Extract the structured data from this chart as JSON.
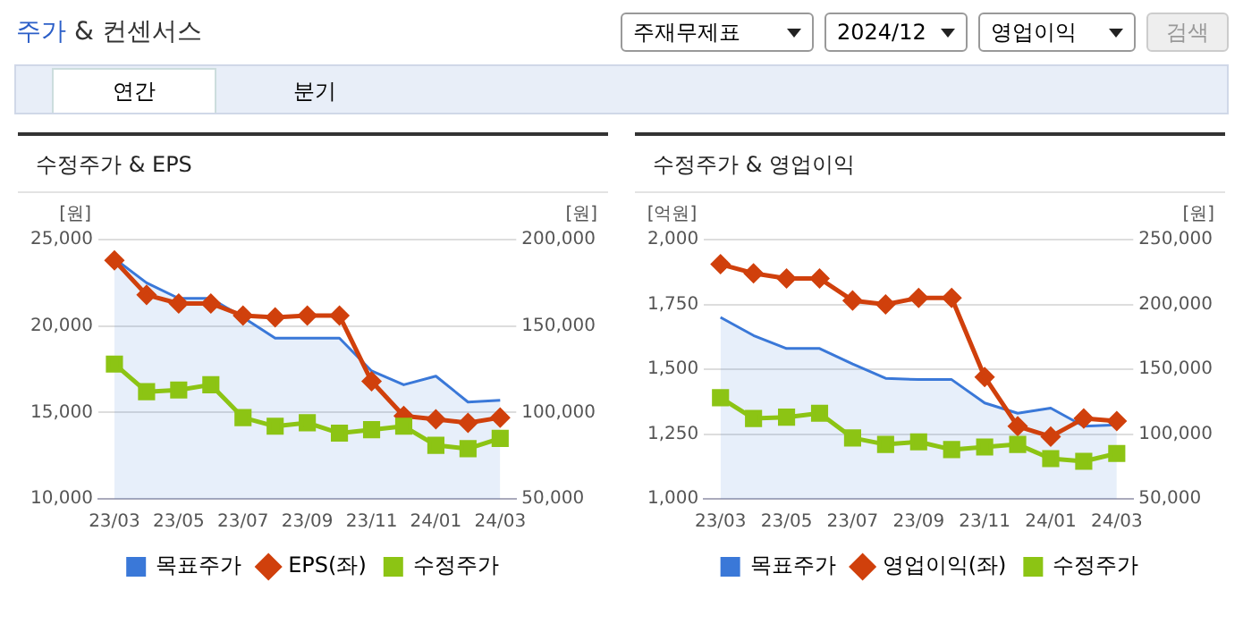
{
  "chart_data": [
    {
      "type": "line",
      "title": "수정주가 & EPS",
      "ylabel": "[원]",
      "y2label": "[원]",
      "annotations": [
        "주가 & 컨센서스",
        "주재무제표",
        "2024/12",
        "영업이익",
        "검색",
        "연간",
        "분기"
      ],
      "categories": [
        "23/03",
        null,
        "23/05",
        null,
        "23/07",
        null,
        "23/09",
        null,
        "23/11",
        null,
        "24/01",
        null,
        "24/03"
      ],
      "series": [
        {
          "name": "목표주가",
          "type": "area",
          "color": "#3a78d8",
          "axis": "y2",
          "marker": "none",
          "values": [
            189000,
            175000,
            166000,
            166000,
            155000,
            143000,
            143000,
            143000,
            124000,
            116000,
            121000,
            106000,
            107000
          ]
        },
        {
          "name": "EPS(좌)",
          "color": "#d0400c",
          "axis": "y",
          "marker": "diamond",
          "values": [
            23800,
            21800,
            21300,
            21300,
            20600,
            20500,
            20600,
            20600,
            16800,
            14800,
            14600,
            14400,
            14700
          ]
        },
        {
          "name": "수정주가",
          "color": "#8cc414",
          "axis": "y2",
          "marker": "square",
          "values": [
            128000,
            112000,
            113000,
            116000,
            97000,
            92000,
            94000,
            88000,
            90000,
            92000,
            81000,
            79000,
            85000
          ]
        }
      ],
      "ylim": [
        10000,
        25000
      ],
      "yticks": [
        {
          "value": 10000,
          "label": "10,000"
        },
        {
          "value": 15000,
          "label": "15,000"
        },
        {
          "value": 20000,
          "label": "20,000"
        },
        {
          "value": 25000,
          "label": "25,000"
        }
      ],
      "y2lim": [
        50000,
        200000
      ],
      "y2ticks": [
        {
          "value": 50000,
          "label": "50,000"
        },
        {
          "value": 100000,
          "label": "100,000"
        },
        {
          "value": 150000,
          "label": "150,000"
        },
        {
          "value": 200000,
          "label": "200,000"
        }
      ],
      "grid": "y",
      "legend": "bottom"
    },
    {
      "type": "line",
      "title": "수정주가 & 영업이익",
      "ylabel": "[억원]",
      "y2label": "[원]",
      "categories": [
        "23/03",
        null,
        "23/05",
        null,
        "23/07",
        null,
        "23/09",
        null,
        "23/11",
        null,
        "24/01",
        null,
        "24/03"
      ],
      "series": [
        {
          "name": "목표주가",
          "type": "area",
          "color": "#3a78d8",
          "axis": "y2",
          "marker": "none",
          "values": [
            190000,
            176000,
            166000,
            166000,
            154000,
            143000,
            142000,
            142000,
            124000,
            116000,
            120000,
            106000,
            107000
          ]
        },
        {
          "name": "영업이익(좌)",
          "color": "#d0400c",
          "axis": "y",
          "marker": "diamond",
          "values": [
            1905,
            1870,
            1850,
            1850,
            1765,
            1750,
            1775,
            1775,
            1470,
            1280,
            1240,
            1310,
            1300
          ]
        },
        {
          "name": "수정주가",
          "color": "#8cc414",
          "axis": "y2",
          "marker": "square",
          "values": [
            128000,
            112000,
            113000,
            116000,
            97000,
            92000,
            94000,
            88000,
            90000,
            92000,
            81000,
            79000,
            85000
          ]
        }
      ],
      "ylim": [
        1000,
        2000
      ],
      "yticks": [
        {
          "value": 1000,
          "label": "1,000"
        },
        {
          "value": 1250,
          "label": "1,250"
        },
        {
          "value": 1500,
          "label": "1,500"
        },
        {
          "value": 1750,
          "label": "1,750"
        },
        {
          "value": 2000,
          "label": "2,000"
        }
      ],
      "y2lim": [
        50000,
        250000
      ],
      "y2ticks": [
        {
          "value": 50000,
          "label": "50,000"
        },
        {
          "value": 100000,
          "label": "100,000"
        },
        {
          "value": 150000,
          "label": "150,000"
        },
        {
          "value": 200000,
          "label": "200,000"
        },
        {
          "value": 250000,
          "label": "250,000"
        }
      ],
      "grid": "y",
      "legend": "bottom"
    }
  ]
}
